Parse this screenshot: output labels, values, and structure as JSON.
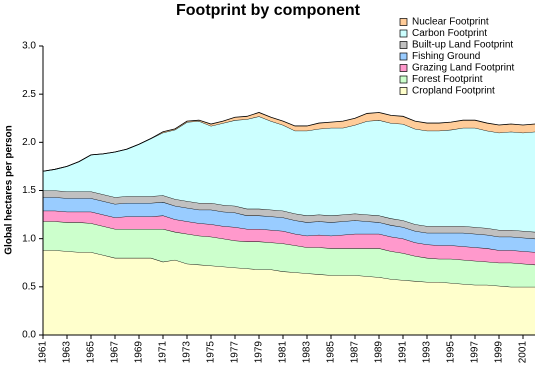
{
  "chart_data": {
    "type": "stacked-area",
    "title": "Footprint by component",
    "y_label": "Global hectares per person",
    "x": [
      1961,
      1962,
      1963,
      1964,
      1965,
      1966,
      1967,
      1968,
      1969,
      1970,
      1971,
      1972,
      1973,
      1974,
      1975,
      1976,
      1977,
      1978,
      1979,
      1980,
      1981,
      1982,
      1983,
      1984,
      1985,
      1986,
      1987,
      1988,
      1989,
      1990,
      1991,
      1992,
      1993,
      1994,
      1995,
      1996,
      1997,
      1998,
      1999,
      2000,
      2001,
      2002
    ],
    "xlim": [
      1961,
      2002
    ],
    "xticks": [
      1961,
      1963,
      1965,
      1967,
      1969,
      1971,
      1973,
      1975,
      1977,
      1979,
      1981,
      1983,
      1985,
      1987,
      1989,
      1991,
      1993,
      1995,
      1997,
      1999,
      2001
    ],
    "ylim": [
      0,
      3
    ],
    "yticks": [
      {
        "value": 0,
        "label": "0.0"
      },
      0.5,
      {
        "value": 1,
        "label": "1.0"
      },
      1.5,
      {
        "value": 2,
        "label": "2.0"
      },
      2.5,
      {
        "value": 3,
        "label": "3.0"
      }
    ],
    "series": [
      {
        "name": "Cropland Footprint",
        "color": "#ffffcc",
        "values": [
          0.88,
          0.88,
          0.87,
          0.86,
          0.86,
          0.83,
          0.8,
          0.8,
          0.8,
          0.8,
          0.76,
          0.78,
          0.74,
          0.73,
          0.72,
          0.71,
          0.7,
          0.69,
          0.68,
          0.68,
          0.66,
          0.65,
          0.64,
          0.63,
          0.62,
          0.62,
          0.62,
          0.61,
          0.6,
          0.58,
          0.57,
          0.56,
          0.55,
          0.55,
          0.54,
          0.53,
          0.52,
          0.52,
          0.51,
          0.5,
          0.5,
          0.5
        ]
      },
      {
        "name": "Forest Footprint",
        "color": "#ccffcc",
        "values": [
          0.3,
          0.3,
          0.3,
          0.31,
          0.3,
          0.3,
          0.3,
          0.3,
          0.3,
          0.3,
          0.34,
          0.29,
          0.31,
          0.3,
          0.3,
          0.29,
          0.28,
          0.28,
          0.29,
          0.28,
          0.29,
          0.28,
          0.27,
          0.28,
          0.28,
          0.28,
          0.28,
          0.29,
          0.3,
          0.29,
          0.28,
          0.26,
          0.25,
          0.24,
          0.25,
          0.25,
          0.25,
          0.24,
          0.24,
          0.25,
          0.24,
          0.23
        ]
      },
      {
        "name": "Grazing Land Footprint",
        "color": "#ff99cc",
        "values": [
          0.11,
          0.11,
          0.11,
          0.11,
          0.12,
          0.12,
          0.12,
          0.13,
          0.13,
          0.13,
          0.14,
          0.13,
          0.13,
          0.13,
          0.13,
          0.13,
          0.14,
          0.13,
          0.13,
          0.13,
          0.13,
          0.12,
          0.12,
          0.13,
          0.13,
          0.14,
          0.15,
          0.15,
          0.15,
          0.15,
          0.15,
          0.14,
          0.14,
          0.14,
          0.14,
          0.14,
          0.14,
          0.14,
          0.13,
          0.13,
          0.13,
          0.13
        ]
      },
      {
        "name": "Fishing Ground",
        "color": "#99ccff",
        "values": [
          0.14,
          0.14,
          0.14,
          0.14,
          0.14,
          0.14,
          0.14,
          0.14,
          0.14,
          0.14,
          0.14,
          0.14,
          0.14,
          0.14,
          0.15,
          0.15,
          0.15,
          0.14,
          0.14,
          0.14,
          0.14,
          0.14,
          0.14,
          0.14,
          0.14,
          0.14,
          0.14,
          0.13,
          0.12,
          0.12,
          0.12,
          0.12,
          0.12,
          0.13,
          0.13,
          0.14,
          0.14,
          0.14,
          0.14,
          0.14,
          0.14,
          0.14
        ]
      },
      {
        "name": "Built-up Land Footprint",
        "color": "#c0c0c0",
        "values": [
          0.07,
          0.07,
          0.07,
          0.07,
          0.07,
          0.07,
          0.07,
          0.07,
          0.07,
          0.07,
          0.07,
          0.07,
          0.07,
          0.07,
          0.07,
          0.07,
          0.07,
          0.07,
          0.07,
          0.07,
          0.07,
          0.07,
          0.07,
          0.07,
          0.07,
          0.07,
          0.07,
          0.07,
          0.07,
          0.07,
          0.07,
          0.07,
          0.07,
          0.07,
          0.07,
          0.07,
          0.07,
          0.07,
          0.07,
          0.07,
          0.07,
          0.07
        ]
      },
      {
        "name": "Carbon Footprint",
        "color": "#ccffff",
        "values": [
          0.2,
          0.22,
          0.26,
          0.31,
          0.38,
          0.42,
          0.47,
          0.49,
          0.54,
          0.6,
          0.65,
          0.72,
          0.82,
          0.85,
          0.8,
          0.85,
          0.89,
          0.93,
          0.96,
          0.92,
          0.89,
          0.86,
          0.88,
          0.89,
          0.91,
          0.9,
          0.92,
          0.97,
          0.99,
          0.99,
          1.0,
          0.99,
          0.99,
          0.99,
          1.0,
          1.02,
          1.03,
          1.01,
          1.01,
          1.02,
          1.02,
          1.04
        ]
      },
      {
        "name": "Nuclear Footprint",
        "color": "#ffcc99",
        "values": [
          0,
          0,
          0,
          0,
          0,
          0,
          0,
          0,
          0,
          0,
          0.01,
          0.01,
          0.01,
          0.01,
          0.02,
          0.02,
          0.03,
          0.03,
          0.04,
          0.04,
          0.04,
          0.05,
          0.05,
          0.06,
          0.06,
          0.07,
          0.07,
          0.08,
          0.08,
          0.08,
          0.08,
          0.08,
          0.08,
          0.08,
          0.08,
          0.08,
          0.08,
          0.08,
          0.08,
          0.08,
          0.08,
          0.08
        ]
      }
    ]
  }
}
